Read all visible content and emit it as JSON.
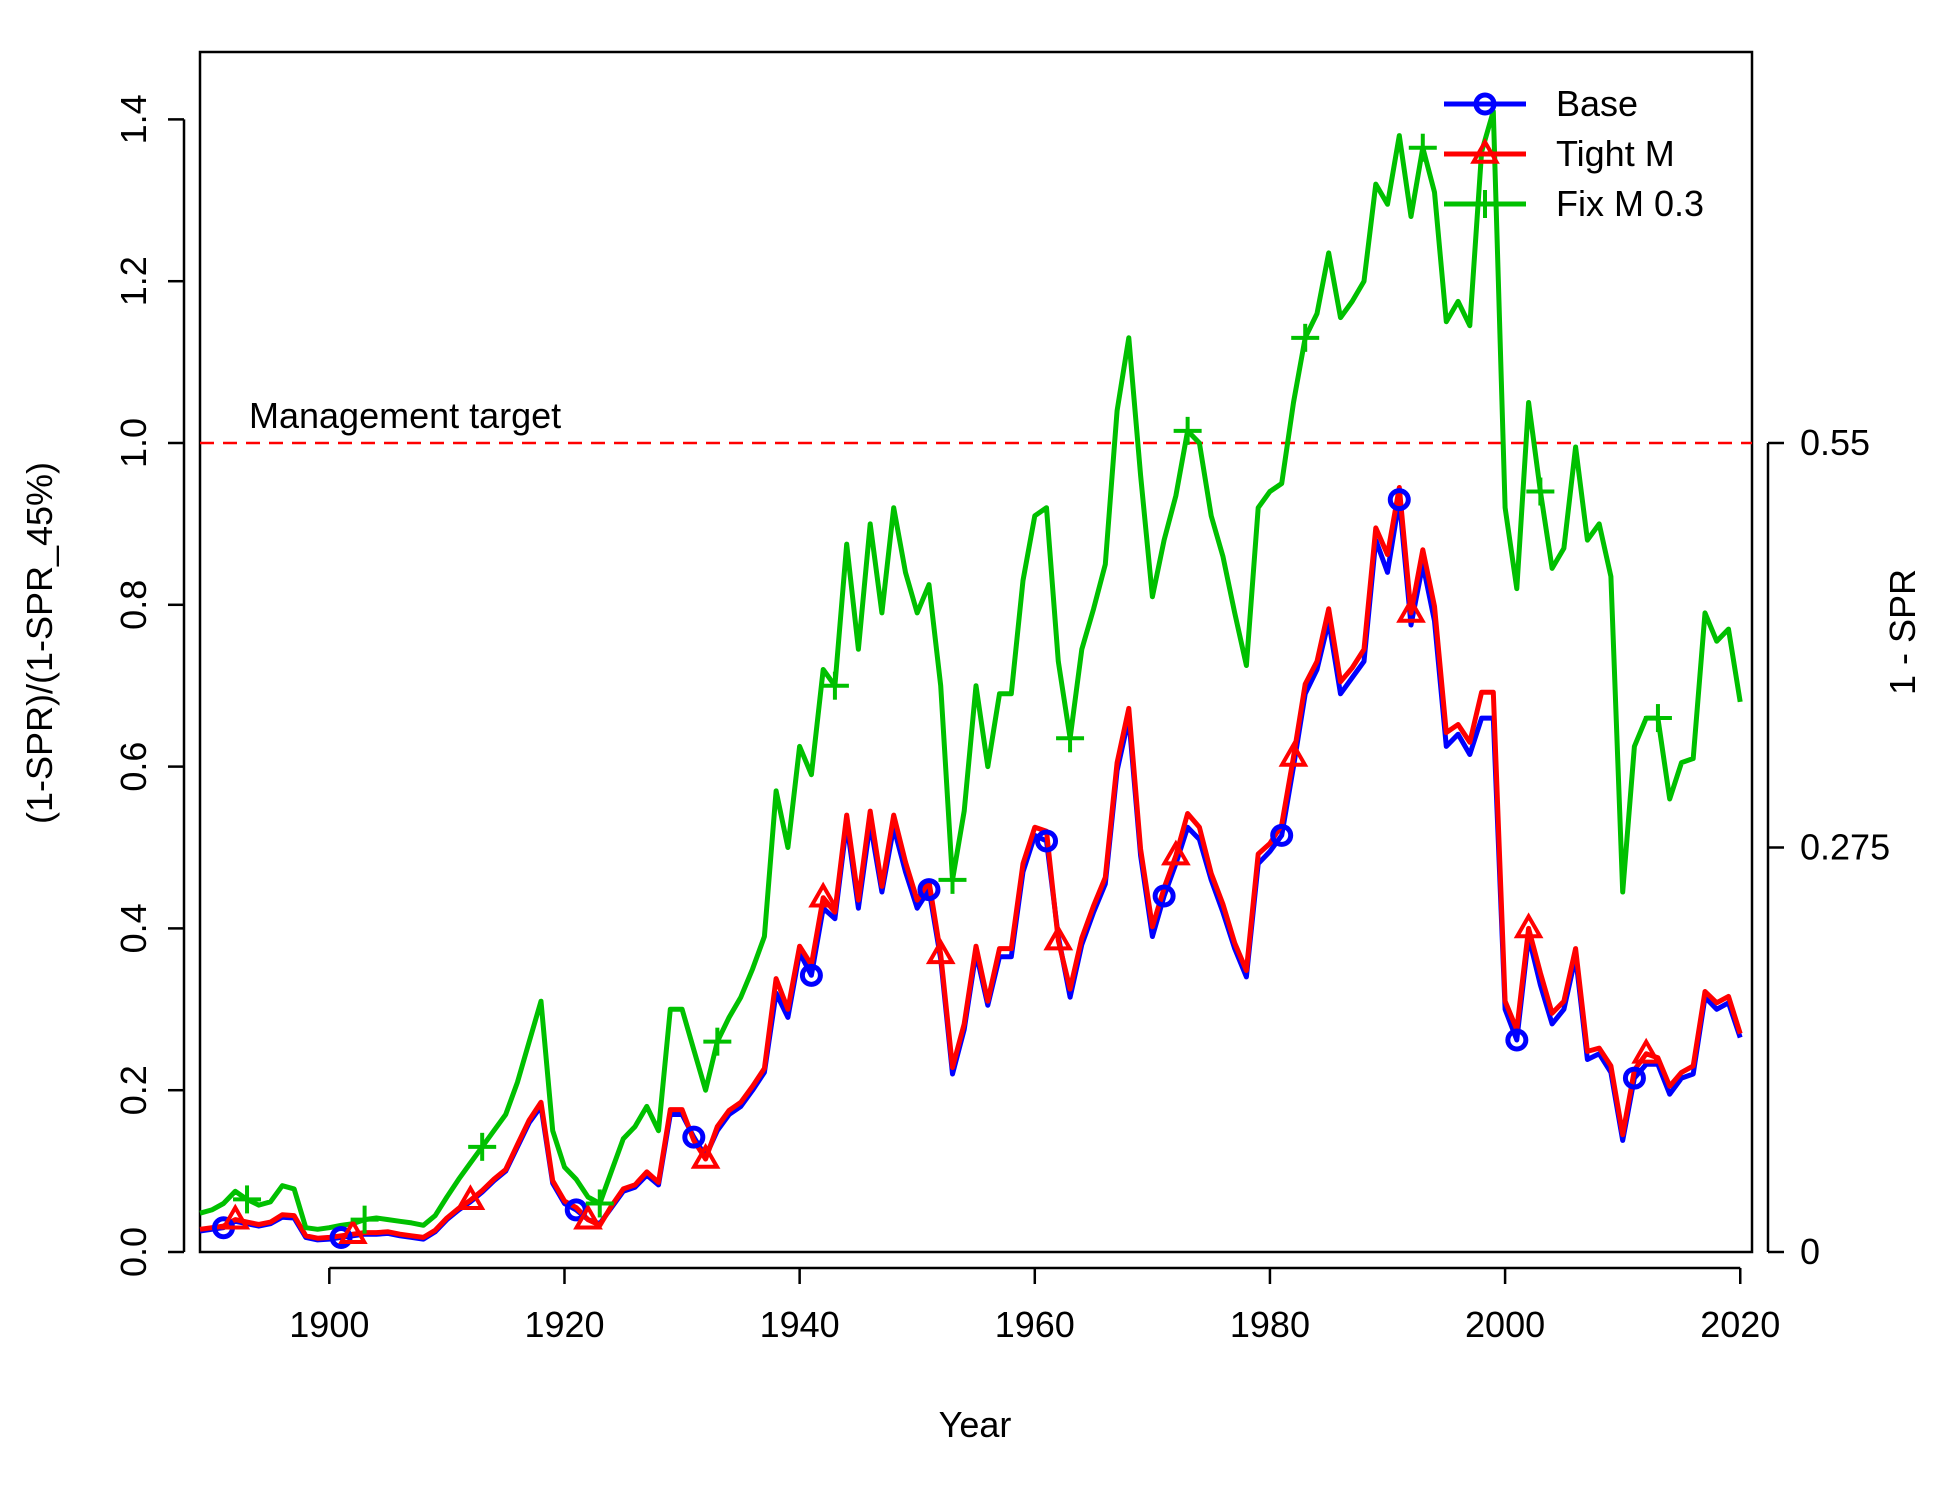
{
  "chart_data": {
    "type": "line",
    "title": "",
    "xlabel": "Year",
    "ylabel": "(1-SPR)/(1-SPR_45%)",
    "y2label": "1 - SPR",
    "xlim": [
      1889,
      2021
    ],
    "ylim": [
      0,
      1.45
    ],
    "xticks": [
      1900,
      1920,
      1940,
      1960,
      1980,
      2000,
      2020
    ],
    "xtick_labels": [
      "1900",
      "1920",
      "1940",
      "1960",
      "1980",
      "2000",
      "2020"
    ],
    "yticks": [
      0,
      0.2,
      0.4,
      0.6,
      0.8,
      1.0,
      1.2,
      1.4
    ],
    "ytick_labels": [
      "0.0",
      "0.2",
      "0.4",
      "0.6",
      "0.8",
      "1.0",
      "1.2",
      "1.4"
    ],
    "y2ticks": [
      0,
      0.5,
      1.0
    ],
    "y2tick_labels": [
      "0",
      "0.275",
      "0.55"
    ],
    "grid": false,
    "legend_position": "top-right",
    "reference_line": {
      "y": 1.0,
      "color": "#ff0000",
      "style": "dashed",
      "label": "Management target"
    },
    "x": [
      1889,
      1890,
      1891,
      1892,
      1893,
      1894,
      1895,
      1896,
      1897,
      1898,
      1899,
      1900,
      1901,
      1902,
      1903,
      1904,
      1905,
      1906,
      1907,
      1908,
      1909,
      1910,
      1911,
      1912,
      1913,
      1914,
      1915,
      1916,
      1917,
      1918,
      1919,
      1920,
      1921,
      1922,
      1923,
      1924,
      1925,
      1926,
      1927,
      1928,
      1929,
      1930,
      1931,
      1932,
      1933,
      1934,
      1935,
      1936,
      1937,
      1938,
      1939,
      1940,
      1941,
      1942,
      1943,
      1944,
      1945,
      1946,
      1947,
      1948,
      1949,
      1950,
      1951,
      1952,
      1953,
      1954,
      1955,
      1956,
      1957,
      1958,
      1959,
      1960,
      1961,
      1962,
      1963,
      1964,
      1965,
      1966,
      1967,
      1968,
      1969,
      1970,
      1971,
      1972,
      1973,
      1974,
      1975,
      1976,
      1977,
      1978,
      1979,
      1980,
      1981,
      1982,
      1983,
      1984,
      1985,
      1986,
      1987,
      1988,
      1989,
      1990,
      1991,
      1992,
      1993,
      1994,
      1995,
      1996,
      1997,
      1998,
      1999,
      2000,
      2001,
      2002,
      2003,
      2004,
      2005,
      2006,
      2007,
      2008,
      2009,
      2010,
      2011,
      2012,
      2013,
      2014,
      2015,
      2016,
      2017,
      2018,
      2019,
      2020
    ],
    "series": [
      {
        "name": "Base",
        "color": "#0000ff",
        "marker": "circle",
        "values": [
          0.026,
          0.028,
          0.03,
          0.038,
          0.035,
          0.032,
          0.035,
          0.043,
          0.042,
          0.018,
          0.015,
          0.016,
          0.018,
          0.02,
          0.022,
          0.022,
          0.023,
          0.02,
          0.018,
          0.016,
          0.025,
          0.04,
          0.052,
          0.062,
          0.074,
          0.088,
          0.1,
          0.13,
          0.16,
          0.18,
          0.085,
          0.06,
          0.052,
          0.04,
          0.035,
          0.055,
          0.075,
          0.08,
          0.095,
          0.083,
          0.17,
          0.17,
          0.142,
          0.118,
          0.15,
          0.17,
          0.18,
          0.2,
          0.222,
          0.32,
          0.29,
          0.37,
          0.342,
          0.425,
          0.412,
          0.53,
          0.425,
          0.53,
          0.445,
          0.525,
          0.47,
          0.425,
          0.448,
          0.362,
          0.22,
          0.275,
          0.37,
          0.305,
          0.365,
          0.365,
          0.47,
          0.515,
          0.508,
          0.39,
          0.315,
          0.38,
          0.42,
          0.455,
          0.595,
          0.66,
          0.49,
          0.39,
          0.44,
          0.48,
          0.525,
          0.51,
          0.46,
          0.42,
          0.375,
          0.34,
          0.48,
          0.495,
          0.515,
          0.6,
          0.69,
          0.72,
          0.78,
          0.69,
          0.71,
          0.73,
          0.88,
          0.84,
          0.93,
          0.775,
          0.85,
          0.78,
          0.625,
          0.64,
          0.615,
          0.66,
          0.66,
          0.3,
          0.262,
          0.39,
          0.33,
          0.282,
          0.3,
          0.365,
          0.238,
          0.245,
          0.222,
          0.138,
          0.215,
          0.232,
          0.232,
          0.195,
          0.215,
          0.22,
          0.315,
          0.3,
          0.308,
          0.265
        ]
      },
      {
        "name": "Tight M",
        "color": "#ff0000",
        "marker": "triangle",
        "values": [
          0.028,
          0.03,
          0.032,
          0.04,
          0.037,
          0.034,
          0.037,
          0.046,
          0.045,
          0.02,
          0.017,
          0.018,
          0.02,
          0.022,
          0.024,
          0.024,
          0.025,
          0.022,
          0.02,
          0.018,
          0.027,
          0.042,
          0.054,
          0.064,
          0.076,
          0.09,
          0.102,
          0.133,
          0.163,
          0.185,
          0.088,
          0.063,
          0.055,
          0.04,
          0.033,
          0.057,
          0.078,
          0.083,
          0.099,
          0.086,
          0.176,
          0.176,
          0.138,
          0.115,
          0.155,
          0.175,
          0.185,
          0.205,
          0.227,
          0.338,
          0.3,
          0.378,
          0.355,
          0.438,
          0.42,
          0.54,
          0.435,
          0.545,
          0.452,
          0.54,
          0.482,
          0.435,
          0.458,
          0.368,
          0.228,
          0.282,
          0.378,
          0.31,
          0.375,
          0.375,
          0.48,
          0.525,
          0.52,
          0.385,
          0.325,
          0.388,
          0.428,
          0.463,
          0.605,
          0.672,
          0.498,
          0.402,
          0.45,
          0.49,
          0.542,
          0.525,
          0.468,
          0.43,
          0.382,
          0.348,
          0.492,
          0.505,
          0.528,
          0.612,
          0.702,
          0.73,
          0.795,
          0.705,
          0.722,
          0.745,
          0.895,
          0.862,
          0.945,
          0.79,
          0.868,
          0.798,
          0.642,
          0.652,
          0.63,
          0.692,
          0.692,
          0.31,
          0.275,
          0.4,
          0.345,
          0.295,
          0.31,
          0.375,
          0.248,
          0.252,
          0.23,
          0.145,
          0.225,
          0.245,
          0.24,
          0.205,
          0.222,
          0.23,
          0.322,
          0.308,
          0.316,
          0.27
        ]
      },
      {
        "name": "Fix M 0.3",
        "color": "#00c000",
        "marker": "plus",
        "values": [
          0.048,
          0.052,
          0.06,
          0.075,
          0.065,
          0.058,
          0.062,
          0.082,
          0.078,
          0.03,
          0.028,
          0.03,
          0.033,
          0.035,
          0.04,
          0.042,
          0.04,
          0.038,
          0.036,
          0.033,
          0.045,
          0.068,
          0.09,
          0.11,
          0.13,
          0.15,
          0.17,
          0.21,
          0.26,
          0.31,
          0.15,
          0.105,
          0.09,
          0.068,
          0.06,
          0.1,
          0.14,
          0.155,
          0.18,
          0.15,
          0.3,
          0.3,
          0.25,
          0.2,
          0.26,
          0.29,
          0.315,
          0.35,
          0.39,
          0.57,
          0.5,
          0.625,
          0.59,
          0.72,
          0.7,
          0.875,
          0.745,
          0.9,
          0.79,
          0.92,
          0.84,
          0.79,
          0.825,
          0.7,
          0.46,
          0.545,
          0.7,
          0.6,
          0.69,
          0.69,
          0.83,
          0.91,
          0.92,
          0.73,
          0.635,
          0.745,
          0.795,
          0.85,
          1.04,
          1.13,
          0.96,
          0.81,
          0.88,
          0.935,
          1.015,
          1.0,
          0.91,
          0.86,
          0.79,
          0.725,
          0.92,
          0.94,
          0.95,
          1.05,
          1.13,
          1.16,
          1.235,
          1.155,
          1.175,
          1.2,
          1.32,
          1.295,
          1.38,
          1.28,
          1.365,
          1.31,
          1.15,
          1.175,
          1.145,
          1.36,
          1.41,
          0.92,
          0.82,
          1.05,
          0.94,
          0.845,
          0.87,
          0.995,
          0.88,
          0.9,
          0.835,
          0.445,
          0.625,
          0.66,
          0.66,
          0.56,
          0.605,
          0.61,
          0.79,
          0.755,
          0.77,
          0.68
        ]
      }
    ]
  },
  "markers": {
    "Base": [
      1891,
      1901,
      1921,
      1931,
      1941,
      1951,
      1961,
      1971,
      1981,
      1991,
      2001,
      2011
    ],
    "Tight M": [
      1892,
      1902,
      1912,
      1922,
      1932,
      1942,
      1952,
      1962,
      1972,
      1982,
      1992,
      2002,
      2012
    ],
    "Fix M 0.3": [
      1893,
      1903,
      1913,
      1923,
      1933,
      1943,
      1953,
      1963,
      1973,
      1983,
      1993,
      2003,
      2013
    ]
  }
}
